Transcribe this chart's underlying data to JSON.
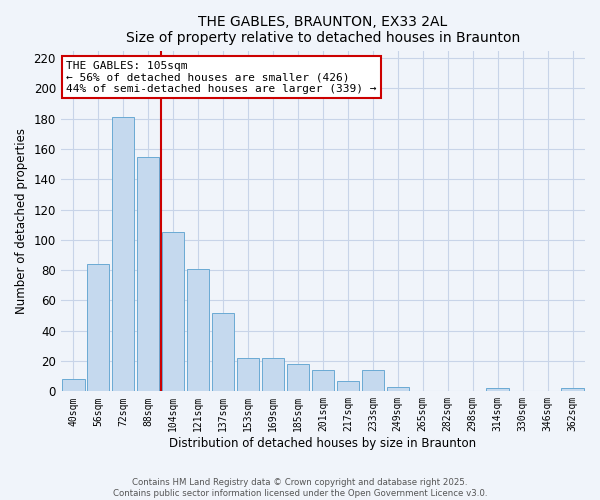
{
  "title": "THE GABLES, BRAUNTON, EX33 2AL",
  "subtitle": "Size of property relative to detached houses in Braunton",
  "xlabel": "Distribution of detached houses by size in Braunton",
  "ylabel": "Number of detached properties",
  "categories": [
    "40sqm",
    "56sqm",
    "72sqm",
    "88sqm",
    "104sqm",
    "121sqm",
    "137sqm",
    "153sqm",
    "169sqm",
    "185sqm",
    "201sqm",
    "217sqm",
    "233sqm",
    "249sqm",
    "265sqm",
    "282sqm",
    "298sqm",
    "314sqm",
    "330sqm",
    "346sqm",
    "362sqm"
  ],
  "values": [
    8,
    84,
    181,
    155,
    105,
    81,
    52,
    22,
    22,
    18,
    14,
    7,
    14,
    3,
    0,
    0,
    0,
    2,
    0,
    0,
    2
  ],
  "bar_color": "#c5d9ee",
  "bar_edge_color": "#6aaad4",
  "annotation_title": "THE GABLES: 105sqm",
  "annotation_line1": "← 56% of detached houses are smaller (426)",
  "annotation_line2": "44% of semi-detached houses are larger (339) →",
  "annotation_box_color": "#ffffff",
  "annotation_box_edge_color": "#cc0000",
  "vline_color": "#cc0000",
  "vline_x": 3.5,
  "ylim": [
    0,
    225
  ],
  "yticks": [
    0,
    20,
    40,
    60,
    80,
    100,
    120,
    140,
    160,
    180,
    200,
    220
  ],
  "footer_line1": "Contains HM Land Registry data © Crown copyright and database right 2025.",
  "footer_line2": "Contains public sector information licensed under the Open Government Licence v3.0.",
  "bg_color": "#f0f4fa",
  "grid_color": "#c8d4e8"
}
